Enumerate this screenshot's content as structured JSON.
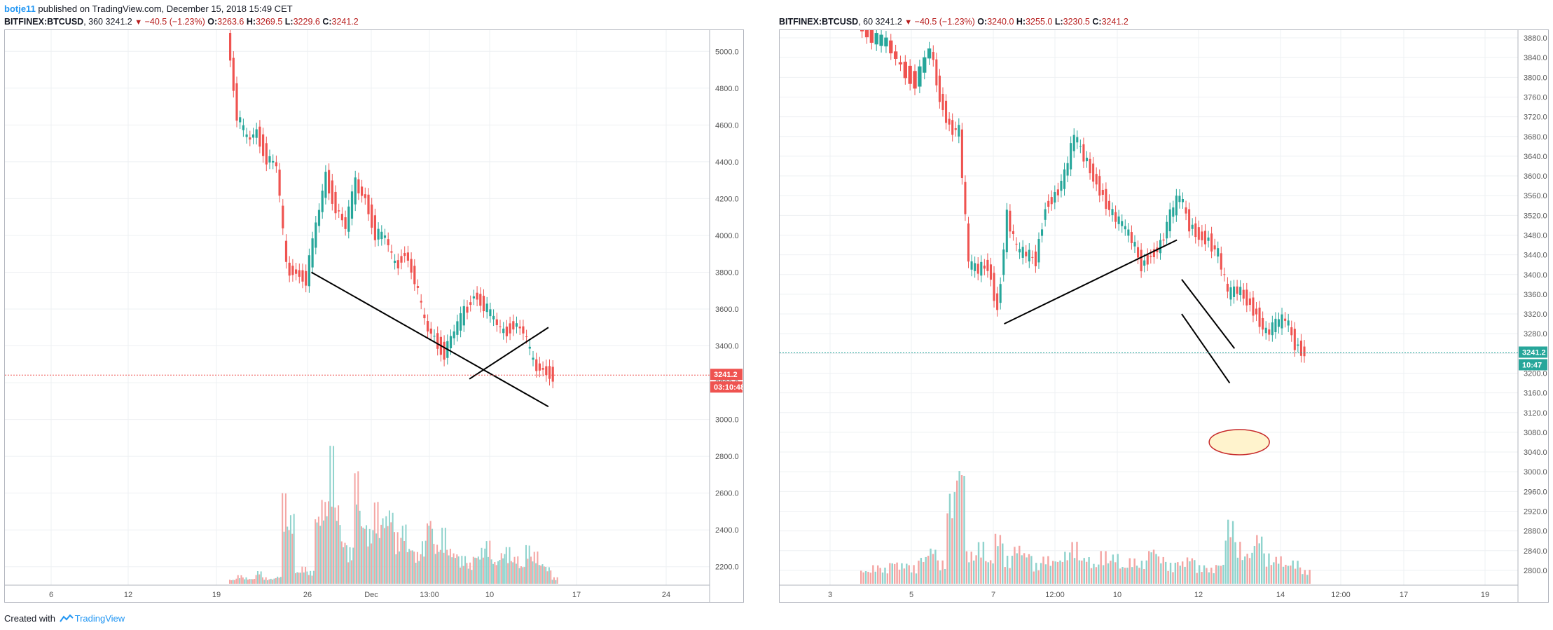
{
  "header": {
    "author": "botje11",
    "published_text": "published on TradingView.com, December 15, 2018 15:49 CET"
  },
  "footer": {
    "created_with": "Created with",
    "brand": "TradingView"
  },
  "colors": {
    "up": "#26a69a",
    "down": "#ef5350",
    "vol_up": "#8fd3cd",
    "vol_down": "#f4a5a3",
    "trendline": "#000000",
    "ellipse_stroke": "#c62828",
    "ellipse_fill": "#fff3cd"
  },
  "chart_data": [
    {
      "type": "candlestick",
      "symbol": "BITFINEX:BTCUSD",
      "interval": "360",
      "ohlc": {
        "last": "3241.2",
        "change": "−40.5 (−1.23%)",
        "O": "3263.6",
        "H": "3269.5",
        "L": "3229.6",
        "C": "3241.2"
      },
      "x_ticks": [
        "6",
        "12",
        "19",
        "26",
        "Dec",
        "13:00",
        "10",
        "17",
        "24"
      ],
      "y_ticks": [
        "5000.0",
        "4800.0",
        "4600.0",
        "4400.0",
        "4200.0",
        "4000.0",
        "3800.0",
        "3600.0",
        "3400.0",
        "3200.0",
        "3000.0",
        "2800.0",
        "2600.0",
        "2400.0",
        "2200.0"
      ],
      "ylim": [
        2100,
        5100
      ],
      "price_label": "3241.2",
      "countdown_label": "03:10:48",
      "price_path": [
        [
          0,
          5100
        ],
        [
          3,
          4650
        ],
        [
          6,
          4520
        ],
        [
          9,
          4560
        ],
        [
          12,
          4420
        ],
        [
          15,
          4380
        ],
        [
          18,
          3820
        ],
        [
          21,
          3800
        ],
        [
          24,
          3760
        ],
        [
          27,
          4050
        ],
        [
          30,
          4320
        ],
        [
          33,
          4150
        ],
        [
          36,
          4050
        ],
        [
          39,
          4280
        ],
        [
          42,
          4200
        ],
        [
          45,
          4010
        ],
        [
          48,
          3990
        ],
        [
          51,
          3830
        ],
        [
          54,
          3910
        ],
        [
          57,
          3760
        ],
        [
          60,
          3520
        ],
        [
          63,
          3440
        ],
        [
          66,
          3360
        ],
        [
          69,
          3480
        ],
        [
          72,
          3580
        ],
        [
          75,
          3680
        ],
        [
          78,
          3620
        ],
        [
          81,
          3540
        ],
        [
          84,
          3470
        ],
        [
          87,
          3520
        ],
        [
          90,
          3480
        ],
        [
          93,
          3300
        ],
        [
          96,
          3270
        ],
        [
          99,
          3241
        ]
      ],
      "volume": [
        [
          0,
          20
        ],
        [
          2,
          40
        ],
        [
          4,
          30
        ],
        [
          6,
          25
        ],
        [
          8,
          60
        ],
        [
          10,
          30
        ],
        [
          12,
          25
        ],
        [
          14,
          35
        ],
        [
          16,
          420
        ],
        [
          18,
          330
        ],
        [
          20,
          60
        ],
        [
          22,
          80
        ],
        [
          24,
          60
        ],
        [
          26,
          340
        ],
        [
          28,
          400
        ],
        [
          30,
          640
        ],
        [
          32,
          380
        ],
        [
          34,
          210
        ],
        [
          36,
          170
        ],
        [
          38,
          530
        ],
        [
          40,
          300
        ],
        [
          42,
          260
        ],
        [
          44,
          380
        ],
        [
          46,
          330
        ],
        [
          48,
          360
        ],
        [
          50,
          240
        ],
        [
          52,
          280
        ],
        [
          54,
          180
        ],
        [
          56,
          150
        ],
        [
          58,
          200
        ],
        [
          60,
          320
        ],
        [
          62,
          190
        ],
        [
          64,
          260
        ],
        [
          66,
          170
        ],
        [
          68,
          150
        ],
        [
          70,
          130
        ],
        [
          72,
          100
        ],
        [
          74,
          140
        ],
        [
          76,
          170
        ],
        [
          78,
          200
        ],
        [
          80,
          110
        ],
        [
          82,
          150
        ],
        [
          84,
          170
        ],
        [
          86,
          130
        ],
        [
          88,
          90
        ],
        [
          90,
          180
        ],
        [
          92,
          150
        ],
        [
          94,
          100
        ],
        [
          96,
          80
        ],
        [
          98,
          30
        ]
      ],
      "vol_max": 650,
      "trendlines": [
        {
          "x1": 25,
          "y1": 3800,
          "x2": 97,
          "y2": 3070
        },
        {
          "x1": 73,
          "y1": 3220,
          "x2": 97,
          "y2": 3500
        }
      ]
    },
    {
      "type": "candlestick",
      "symbol": "BITFINEX:BTCUSD",
      "interval": "60",
      "ohlc": {
        "last": "3241.2",
        "change": "−40.5 (−1.23%)",
        "O": "3240.0",
        "H": "3255.0",
        "L": "3230.5",
        "C": "3241.2"
      },
      "x_ticks": [
        "3",
        "5",
        "7",
        "12:00",
        "10",
        "12",
        "14",
        "12:00",
        "17",
        "19"
      ],
      "y_ticks": [
        "3880.0",
        "3840.0",
        "3800.0",
        "3760.0",
        "3720.0",
        "3680.0",
        "3640.0",
        "3600.0",
        "3560.0",
        "3520.0",
        "3480.0",
        "3440.0",
        "3400.0",
        "3360.0",
        "3320.0",
        "3280.0",
        "3240.0",
        "3200.0",
        "3160.0",
        "3120.0",
        "3080.0",
        "3040.0",
        "3000.0",
        "2960.0",
        "2920.0",
        "2880.0",
        "2840.0",
        "2800.0"
      ],
      "ylim": [
        2770,
        3890
      ],
      "price_label": "3241.2",
      "countdown_label": "10:47",
      "price_path": [
        [
          0,
          3900
        ],
        [
          3,
          3880
        ],
        [
          6,
          3870
        ],
        [
          9,
          3820
        ],
        [
          12,
          3790
        ],
        [
          15,
          3860
        ],
        [
          17,
          3760
        ],
        [
          19,
          3700
        ],
        [
          21,
          3690
        ],
        [
          23,
          3420
        ],
        [
          25,
          3410
        ],
        [
          27,
          3420
        ],
        [
          29,
          3330
        ],
        [
          31,
          3520
        ],
        [
          33,
          3450
        ],
        [
          35,
          3440
        ],
        [
          37,
          3430
        ],
        [
          39,
          3540
        ],
        [
          41,
          3560
        ],
        [
          43,
          3600
        ],
        [
          45,
          3680
        ],
        [
          47,
          3640
        ],
        [
          49,
          3600
        ],
        [
          51,
          3560
        ],
        [
          53,
          3520
        ],
        [
          55,
          3500
        ],
        [
          57,
          3470
        ],
        [
          59,
          3420
        ],
        [
          61,
          3440
        ],
        [
          63,
          3460
        ],
        [
          65,
          3520
        ],
        [
          67,
          3560
        ],
        [
          69,
          3500
        ],
        [
          71,
          3480
        ],
        [
          73,
          3470
        ],
        [
          75,
          3440
        ],
        [
          77,
          3360
        ],
        [
          79,
          3370
        ],
        [
          81,
          3350
        ],
        [
          83,
          3320
        ],
        [
          85,
          3280
        ],
        [
          87,
          3300
        ],
        [
          89,
          3310
        ],
        [
          91,
          3260
        ],
        [
          93,
          3241
        ]
      ],
      "volume": [
        [
          0,
          30
        ],
        [
          2,
          40
        ],
        [
          4,
          35
        ],
        [
          6,
          50
        ],
        [
          8,
          45
        ],
        [
          10,
          40
        ],
        [
          12,
          60
        ],
        [
          14,
          80
        ],
        [
          16,
          50
        ],
        [
          18,
          200
        ],
        [
          20,
          270
        ],
        [
          22,
          70
        ],
        [
          24,
          90
        ],
        [
          26,
          55
        ],
        [
          28,
          110
        ],
        [
          30,
          60
        ],
        [
          32,
          85
        ],
        [
          34,
          70
        ],
        [
          36,
          45
        ],
        [
          38,
          60
        ],
        [
          40,
          55
        ],
        [
          42,
          70
        ],
        [
          44,
          90
        ],
        [
          46,
          60
        ],
        [
          48,
          45
        ],
        [
          50,
          70
        ],
        [
          52,
          65
        ],
        [
          54,
          40
        ],
        [
          56,
          55
        ],
        [
          58,
          50
        ],
        [
          60,
          80
        ],
        [
          62,
          60
        ],
        [
          64,
          45
        ],
        [
          66,
          50
        ],
        [
          68,
          60
        ],
        [
          70,
          40
        ],
        [
          72,
          35
        ],
        [
          74,
          45
        ],
        [
          76,
          140
        ],
        [
          78,
          90
        ],
        [
          80,
          70
        ],
        [
          82,
          110
        ],
        [
          84,
          65
        ],
        [
          86,
          60
        ],
        [
          88,
          45
        ],
        [
          90,
          50
        ],
        [
          92,
          30
        ]
      ],
      "vol_max": 300,
      "trendlines": [
        {
          "x1": 30,
          "y1": 3300,
          "x2": 66,
          "y2": 3470
        },
        {
          "x1": 67,
          "y1": 3390,
          "x2": 78,
          "y2": 3250
        },
        {
          "x1": 67,
          "y1": 3320,
          "x2": 77,
          "y2": 3180
        }
      ],
      "ellipse": {
        "x": 79,
        "y": 3060
      }
    }
  ]
}
